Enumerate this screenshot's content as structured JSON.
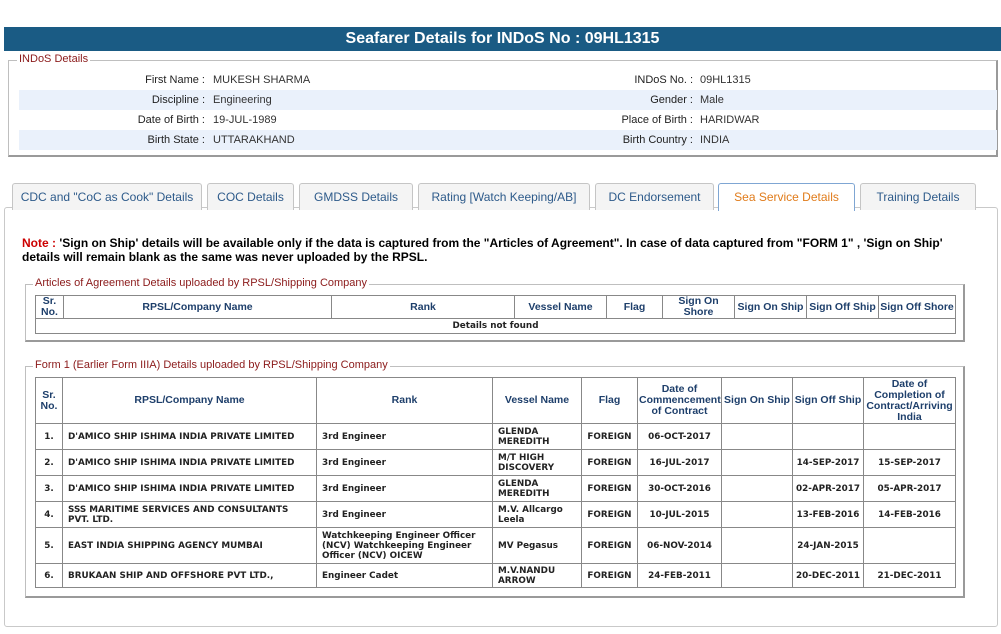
{
  "page_title": "Seafarer Details for INDoS No : 09HL1315",
  "indos": {
    "legend": "INDoS Details",
    "rows": [
      {
        "l1": "First Name :",
        "v1": "MUKESH SHARMA",
        "l2": "INDoS No. :",
        "v2": "09HL1315"
      },
      {
        "l1": "Discipline :",
        "v1": "Engineering",
        "l2": "Gender :",
        "v2": "Male"
      },
      {
        "l1": "Date of Birth :",
        "v1": "19-JUL-1989",
        "l2": "Place of Birth :",
        "v2": "HARIDWAR"
      },
      {
        "l1": "Birth State :",
        "v1": "UTTARAKHAND",
        "l2": "Birth Country :",
        "v2": "INDIA"
      }
    ]
  },
  "tabs": [
    {
      "label": "CDC and \"CoC as Cook\" Details",
      "active": false
    },
    {
      "label": "COC Details",
      "active": false
    },
    {
      "label": "GMDSS Details",
      "active": false
    },
    {
      "label": "Rating [Watch Keeping/AB]",
      "active": false
    },
    {
      "label": "DC Endorsement",
      "active": false
    },
    {
      "label": "Sea Service Details",
      "active": true
    },
    {
      "label": "Training Details",
      "active": false
    }
  ],
  "note": {
    "label": "Note :",
    "text": " 'Sign on Ship' details will be available only if the data is captured from the \"Articles of Agreement\". In case of data captured from \"FORM 1\" , 'Sign on Ship' details will remain blank as the same was never uploaded by the RPSL."
  },
  "articles": {
    "legend": "Articles of Agreement Details uploaded by RPSL/Shipping Company",
    "headers": [
      "Sr. No.",
      "RPSL/Company Name",
      "Rank",
      "Vessel Name",
      "Flag",
      "Sign On Shore",
      "Sign On Ship",
      "Sign Off Ship",
      "Sign Off Shore"
    ],
    "empty_text": "Details not found"
  },
  "form1": {
    "legend": "Form 1 (Earlier Form IIIA) Details uploaded by RPSL/Shipping Company",
    "headers": [
      "Sr. No.",
      "RPSL/Company Name",
      "Rank",
      "Vessel Name",
      "Flag",
      "Date of Commencement of Contract",
      "Sign On Ship",
      "Sign Off Ship",
      "Date of Completion of Contract/Arriving India"
    ],
    "rows": [
      {
        "sr": "1.",
        "company": "D'AMICO SHIP ISHIMA INDIA PRIVATE LIMITED",
        "rank": "3rd Engineer",
        "vessel": "GLENDA MEREDITH",
        "flag": "FOREIGN",
        "start": "06-OCT-2017",
        "sign_on": "",
        "sign_off": "",
        "end": ""
      },
      {
        "sr": "2.",
        "company": "D'AMICO SHIP ISHIMA INDIA PRIVATE LIMITED",
        "rank": "3rd Engineer",
        "vessel": "M/T HIGH DISCOVERY",
        "flag": "FOREIGN",
        "start": "16-JUL-2017",
        "sign_on": "",
        "sign_off": "14-SEP-2017",
        "end": "15-SEP-2017"
      },
      {
        "sr": "3.",
        "company": "D'AMICO SHIP ISHIMA INDIA PRIVATE LIMITED",
        "rank": "3rd Engineer",
        "vessel": "GLENDA MEREDITH",
        "flag": "FOREIGN",
        "start": "30-OCT-2016",
        "sign_on": "",
        "sign_off": "02-APR-2017",
        "end": "05-APR-2017"
      },
      {
        "sr": "4.",
        "company": "SSS MARITIME SERVICES AND CONSULTANTS PVT. LTD.",
        "rank": "3rd Engineer",
        "vessel": "M.V. Allcargo Leela",
        "flag": "FOREIGN",
        "start": "10-JUL-2015",
        "sign_on": "",
        "sign_off": "13-FEB-2016",
        "end": "14-FEB-2016"
      },
      {
        "sr": "5.",
        "company": "EAST INDIA SHIPPING AGENCY MUMBAI",
        "rank": "Watchkeeping Engineer Officer (NCV) Watchkeeping Engineer Officer (NCV) OICEW",
        "vessel": "MV Pegasus",
        "flag": "FOREIGN",
        "start": "06-NOV-2014",
        "sign_on": "",
        "sign_off": "24-JAN-2015",
        "end": ""
      },
      {
        "sr": "6.",
        "company": "BRUKAAN SHIP AND OFFSHORE PVT LTD.,",
        "rank": "Engineer Cadet",
        "vessel": "M.V.NANDU ARROW",
        "flag": "FOREIGN",
        "start": "24-FEB-2011",
        "sign_on": "",
        "sign_off": "20-DEC-2011",
        "end": "21-DEC-2011"
      }
    ]
  }
}
